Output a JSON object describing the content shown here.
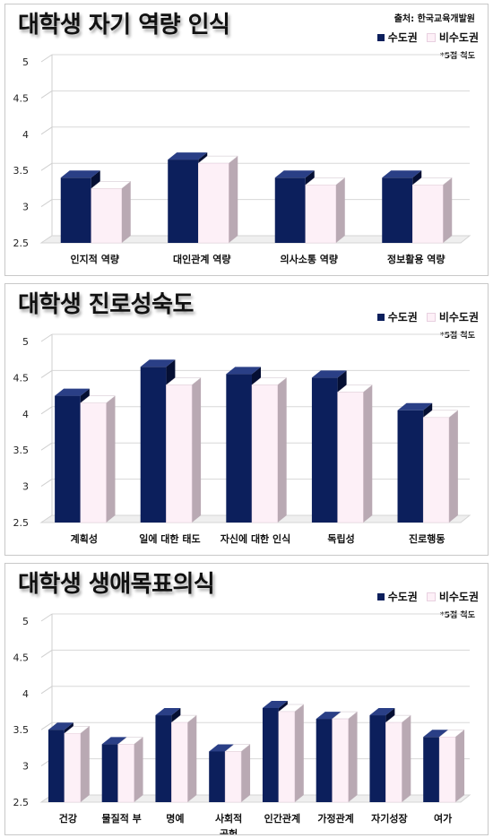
{
  "colors": {
    "capital": "#0c1f5c",
    "non_capital": "#fdf0f7"
  },
  "chart_data": [
    {
      "type": "bar",
      "title": "대학생 자기 역량 인식",
      "source": "출처: 한국교육개발원",
      "scale_note": "*5점 척도",
      "categories": [
        "인지적 역량",
        "대인관계 역량",
        "의사소통 역량",
        "정보활용 역량"
      ],
      "series": [
        {
          "name": "수도권",
          "values": [
            3.4,
            3.65,
            3.4,
            3.4
          ]
        },
        {
          "name": "비수도권",
          "values": [
            3.25,
            3.6,
            3.3,
            3.3
          ]
        }
      ],
      "ylim": [
        2.5,
        5
      ],
      "yticks": [
        "2.5",
        "3",
        "3.5",
        "4",
        "4.5",
        "5"
      ]
    },
    {
      "type": "bar",
      "title": "대학생 진로성숙도",
      "scale_note": "*5점 척도",
      "categories": [
        "계획성",
        "일에 대한 태도",
        "자신에 대한 인식",
        "독립성",
        "진로행동"
      ],
      "series": [
        {
          "name": "수도권",
          "values": [
            4.25,
            4.65,
            4.55,
            4.5,
            4.05
          ]
        },
        {
          "name": "비수도권",
          "values": [
            4.15,
            4.4,
            4.4,
            4.3,
            3.95
          ]
        }
      ],
      "ylim": [
        2.5,
        5
      ],
      "yticks": [
        "2.5",
        "3",
        "3.5",
        "4",
        "4.5",
        "5"
      ]
    },
    {
      "type": "bar",
      "title": "대학생 생애목표의식",
      "scale_note": "*5점 척도",
      "categories": [
        "건강",
        "물질적 부",
        "명예",
        "사회적 공헌",
        "인간관계",
        "가정관계",
        "자기성장",
        "여가"
      ],
      "series": [
        {
          "name": "수도권",
          "values": [
            3.5,
            3.3,
            3.7,
            3.2,
            3.8,
            3.65,
            3.7,
            3.4
          ]
        },
        {
          "name": "비수도권",
          "values": [
            3.45,
            3.3,
            3.6,
            3.2,
            3.75,
            3.65,
            3.6,
            3.4
          ]
        }
      ],
      "ylim": [
        2.5,
        5
      ],
      "yticks": [
        "2.5",
        "3",
        "3.5",
        "4",
        "4.5",
        "5"
      ]
    }
  ]
}
